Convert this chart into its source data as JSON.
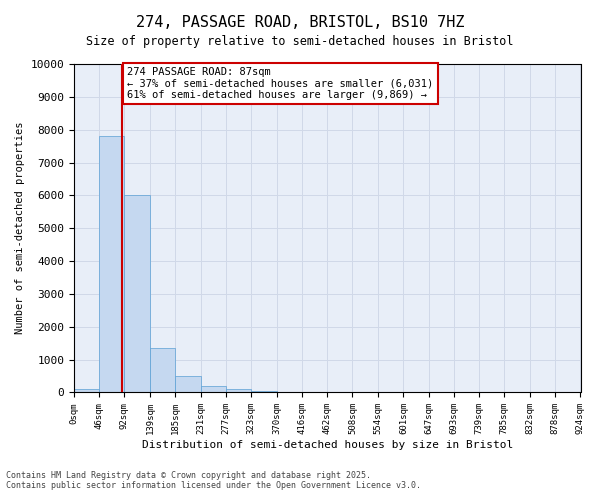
{
  "title_line1": "274, PASSAGE ROAD, BRISTOL, BS10 7HZ",
  "title_line2": "Size of property relative to semi-detached houses in Bristol",
  "xlabel": "Distribution of semi-detached houses by size in Bristol",
  "ylabel": "Number of semi-detached properties",
  "property_label": "274 PASSAGE ROAD: 87sqm",
  "pct_smaller": "← 37% of semi-detached houses are smaller (6,031)",
  "pct_larger": "61% of semi-detached houses are larger (9,869) →",
  "property_size": 87,
  "bin_edges": [
    0,
    46,
    92,
    139,
    185,
    231,
    277,
    323,
    370,
    416,
    462,
    508,
    554,
    601,
    647,
    693,
    739,
    785,
    832,
    878,
    924
  ],
  "bar_heights": [
    100,
    7800,
    6000,
    1350,
    500,
    200,
    120,
    50,
    0,
    0,
    0,
    0,
    0,
    0,
    0,
    0,
    0,
    0,
    0,
    0
  ],
  "bar_color": "#c5d8f0",
  "bar_edge_color": "#5a9fd4",
  "vline_color": "#cc0000",
  "vline_x": 87,
  "ylim": [
    0,
    10000
  ],
  "yticks": [
    0,
    1000,
    2000,
    3000,
    4000,
    5000,
    6000,
    7000,
    8000,
    9000,
    10000
  ],
  "grid_color": "#d0d8e8",
  "background_color": "#e8eef8",
  "annotation_box_color": "#cc0000",
  "footer_line1": "Contains HM Land Registry data © Crown copyright and database right 2025.",
  "footer_line2": "Contains public sector information licensed under the Open Government Licence v3.0."
}
